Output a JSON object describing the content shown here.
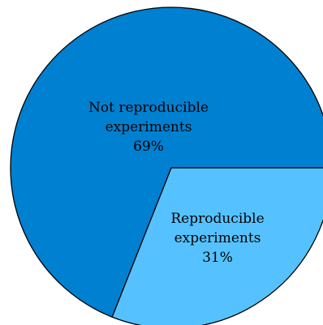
{
  "chart_data": {
    "type": "pie",
    "slices": [
      {
        "label_lines": [
          "Not reproducible",
          "experiments"
        ],
        "value": 69,
        "percent_label": "69%",
        "color": "#0080d0"
      },
      {
        "label_lines": [
          "Reproducible",
          "experiments"
        ],
        "value": 31,
        "percent_label": "31%",
        "color": "#55c2ff"
      }
    ],
    "stroke_color": "#000000"
  }
}
